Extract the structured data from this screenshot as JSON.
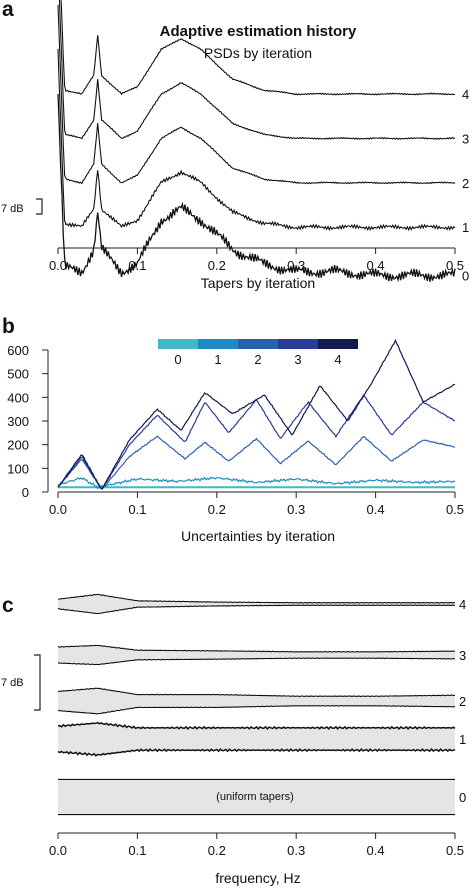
{
  "chart_data": [
    {
      "panel": "a",
      "type": "line",
      "title": "Adaptive estimation history",
      "subtitle": "PSDs by iteration",
      "xlabel": "Tapers by iteration",
      "xlim": [
        0,
        0.5
      ],
      "xticks": [
        "0.0",
        "0.1",
        "0.2",
        "0.3",
        "0.4",
        "0.5"
      ],
      "scale_bar": "7 dB",
      "series": [
        {
          "name": "0",
          "x": [
            0,
            0.01,
            0.03,
            0.045,
            0.05,
            0.055,
            0.08,
            0.1,
            0.13,
            0.155,
            0.18,
            0.22,
            0.26,
            0.3,
            0.35,
            0.4,
            0.45,
            0.5
          ],
          "values": [
            0,
            -3.5,
            -4,
            -1,
            4,
            -1,
            -4,
            -3,
            3,
            4.5,
            3,
            -1,
            -3,
            -4,
            -4,
            -4.5,
            -4.5,
            -4.5
          ]
        },
        {
          "name": "1",
          "x": [
            0,
            0.01,
            0.03,
            0.045,
            0.05,
            0.055,
            0.08,
            0.1,
            0.13,
            0.155,
            0.18,
            0.22,
            0.26,
            0.3,
            0.35,
            0.4,
            0.45,
            0.5
          ],
          "values": [
            6,
            2.5,
            2,
            4.5,
            10,
            4.5,
            2,
            3,
            8,
            9.5,
            8,
            4,
            2.5,
            2,
            2,
            2,
            2,
            2
          ]
        },
        {
          "name": "2",
          "x": [
            0,
            0.01,
            0.03,
            0.045,
            0.05,
            0.055,
            0.08,
            0.1,
            0.13,
            0.155,
            0.18,
            0.22,
            0.26,
            0.3,
            0.35,
            0.4,
            0.45,
            0.5
          ],
          "values": [
            12,
            8.5,
            8,
            10.5,
            16,
            10.5,
            8,
            9,
            14,
            15.5,
            14,
            10,
            8.5,
            8,
            8,
            8,
            8,
            8
          ]
        },
        {
          "name": "3",
          "x": [
            0,
            0.01,
            0.03,
            0.045,
            0.05,
            0.055,
            0.08,
            0.1,
            0.13,
            0.155,
            0.18,
            0.22,
            0.26,
            0.3,
            0.35,
            0.4,
            0.45,
            0.5
          ],
          "values": [
            18,
            14.5,
            14,
            16.5,
            22,
            16.5,
            14,
            15,
            20,
            21.5,
            20,
            16,
            14.5,
            14,
            14,
            14,
            14,
            14
          ]
        },
        {
          "name": "4",
          "x": [
            0,
            0.01,
            0.03,
            0.045,
            0.05,
            0.055,
            0.08,
            0.1,
            0.13,
            0.155,
            0.18,
            0.22,
            0.26,
            0.3,
            0.35,
            0.4,
            0.45,
            0.5
          ],
          "values": [
            24,
            20.5,
            20,
            22.5,
            28,
            22.5,
            20,
            21,
            26,
            27.5,
            26,
            22,
            20.5,
            20,
            20,
            20,
            20,
            20
          ]
        }
      ]
    },
    {
      "panel": "b",
      "type": "line",
      "title": "",
      "xlabel": "Uncertainties by iteration",
      "xlim": [
        0,
        0.5
      ],
      "ylim": [
        0,
        600
      ],
      "xticks": [
        "0.0",
        "0.1",
        "0.2",
        "0.3",
        "0.4",
        "0.5"
      ],
      "yticks": [
        "0",
        "100",
        "200",
        "300",
        "400",
        "500",
        "600"
      ],
      "legend": [
        "0",
        "1",
        "2",
        "3",
        "4"
      ],
      "legend_colors": [
        "#40b8c8",
        "#1e8cc4",
        "#2a60b0",
        "#283c96",
        "#121a50"
      ],
      "series": [
        {
          "name": "0",
          "color": "#40b8c8",
          "x": [
            0,
            0.5
          ],
          "values": [
            20,
            20
          ]
        },
        {
          "name": "1",
          "color": "#1e8cc4",
          "x": [
            0,
            0.03,
            0.05,
            0.1,
            0.15,
            0.2,
            0.25,
            0.3,
            0.35,
            0.4,
            0.45,
            0.5
          ],
          "values": [
            30,
            60,
            20,
            55,
            45,
            60,
            40,
            55,
            35,
            50,
            40,
            45
          ]
        },
        {
          "name": "2",
          "color": "#2a60b0",
          "x": [
            0,
            0.03,
            0.055,
            0.09,
            0.125,
            0.16,
            0.185,
            0.215,
            0.25,
            0.28,
            0.315,
            0.35,
            0.385,
            0.42,
            0.46,
            0.5
          ],
          "values": [
            20,
            140,
            10,
            150,
            235,
            140,
            210,
            130,
            225,
            120,
            215,
            115,
            235,
            130,
            220,
            190
          ]
        },
        {
          "name": "3",
          "color": "#283c96",
          "x": [
            0,
            0.03,
            0.055,
            0.09,
            0.125,
            0.16,
            0.185,
            0.215,
            0.25,
            0.28,
            0.315,
            0.35,
            0.385,
            0.42,
            0.46,
            0.5
          ],
          "values": [
            20,
            150,
            10,
            200,
            325,
            210,
            380,
            250,
            390,
            225,
            380,
            235,
            410,
            240,
            380,
            300
          ]
        },
        {
          "name": "4",
          "color": "#121a50",
          "x": [
            0,
            0.03,
            0.055,
            0.09,
            0.125,
            0.155,
            0.185,
            0.22,
            0.26,
            0.295,
            0.33,
            0.365,
            0.395,
            0.425,
            0.46,
            0.5
          ],
          "values": [
            20,
            160,
            10,
            220,
            350,
            260,
            420,
            330,
            410,
            240,
            450,
            300,
            460,
            640,
            380,
            455
          ]
        }
      ]
    },
    {
      "panel": "c",
      "type": "area",
      "title": "",
      "xlabel": "frequency, Hz",
      "xlim": [
        0,
        0.5
      ],
      "xticks": [
        "0.0",
        "0.1",
        "0.2",
        "0.3",
        "0.4",
        "0.5"
      ],
      "scale_bar": "7 dB",
      "annotation": "(uniform tapers)",
      "series": [
        {
          "name": "4",
          "x": [
            0,
            0.05,
            0.1,
            0.2,
            0.3,
            0.4,
            0.5
          ],
          "upper": [
            1.5,
            3,
            1,
            0.6,
            0.4,
            0.4,
            0.4
          ],
          "lower": [
            -1.5,
            -3,
            -1,
            -0.6,
            -0.4,
            -0.4,
            -0.4
          ]
        },
        {
          "name": "3",
          "x": [
            0,
            0.05,
            0.1,
            0.2,
            0.3,
            0.4,
            0.5
          ],
          "upper": [
            2.5,
            3,
            1.5,
            1.3,
            1,
            1,
            1.2
          ],
          "lower": [
            -2.5,
            -3,
            -1.5,
            -1.3,
            -1,
            -1,
            -1.2
          ]
        },
        {
          "name": "2",
          "x": [
            0,
            0.05,
            0.1,
            0.2,
            0.3,
            0.4,
            0.5
          ],
          "upper": [
            3,
            4,
            2,
            2,
            1.5,
            1.5,
            1.8
          ],
          "lower": [
            -3,
            -4,
            -2,
            -2,
            -1.5,
            -1.5,
            -1.8
          ]
        },
        {
          "name": "1",
          "x": [
            0,
            0.05,
            0.1,
            0.2,
            0.3,
            0.4,
            0.5
          ],
          "upper": [
            4,
            5,
            3.5,
            3.5,
            3.5,
            3.5,
            3.5
          ],
          "lower": [
            -4,
            -5,
            -3.5,
            -3.5,
            -3.5,
            -3.5,
            -3.5
          ]
        },
        {
          "name": "0",
          "x": [
            0,
            0.5
          ],
          "upper": [
            5.5,
            5.5
          ],
          "lower": [
            -5.5,
            -5.5
          ]
        }
      ]
    }
  ]
}
